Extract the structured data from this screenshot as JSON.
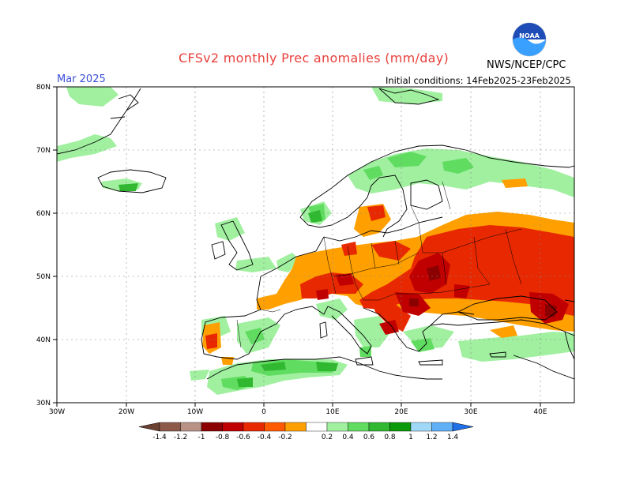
{
  "header": {
    "title": "CFSv2 monthly Prec anomalies (mm/day)",
    "month": "Mar 2025",
    "initial_conditions": "Initial conditions: 14Feb2025-23Feb2025",
    "agency": "NWS/NCEP/CPC",
    "logo_text": "NOAA"
  },
  "axes": {
    "lat_labels": [
      "80N",
      "70N",
      "60N",
      "50N",
      "40N",
      "30N"
    ],
    "lon_labels": [
      "30W",
      "20W",
      "10W",
      "0",
      "10E",
      "20E",
      "30E",
      "40E"
    ]
  },
  "legend": {
    "labels": [
      "-1.4",
      "-1.2",
      "-1",
      "-0.8",
      "-0.6",
      "-0.4",
      "-0.2",
      "0.2",
      "0.4",
      "0.6",
      "0.8",
      "1",
      "1.2",
      "1.4"
    ],
    "colors": [
      "#6b4131",
      "#8d5a4a",
      "#b89286",
      "#8b0000",
      "#c00000",
      "#e82800",
      "#ff5a00",
      "#ffa000",
      "#ffffff",
      "#a0f0a0",
      "#60dc60",
      "#30b830",
      "#0a9a0a",
      "#a0d8f8",
      "#60b0f8",
      "#2070e8"
    ]
  },
  "colors": {
    "dry_strong": "#c00000",
    "dry_mid": "#e82800",
    "dry_light": "#ffa000",
    "wet_light": "#a0f0a0",
    "wet_mid": "#60dc60",
    "wet_strong": "#30b830"
  }
}
